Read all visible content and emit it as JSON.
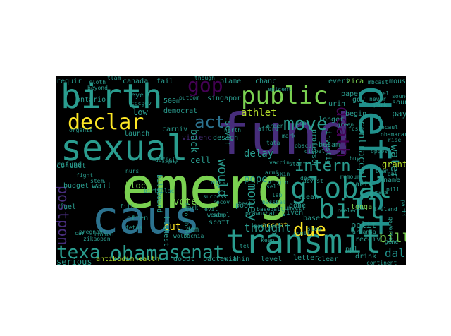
{
  "wordcloud": {
    "background": "#000000",
    "palette": {
      "yellow": "#fde725",
      "lgreen": "#7ad151",
      "green": "#22a884",
      "teal": "#2a9d8f",
      "tealb": "#21918c",
      "blue": "#2c728e",
      "dblue": "#3b528b",
      "purple": "#472d7b",
      "dpurple": "#440154",
      "lime": "#b5de2b",
      "grey": "#555f6d"
    },
    "words": [
      {
        "text": "emerg",
        "color": "lgreen"
      },
      {
        "text": "fund",
        "color": "purple"
      },
      {
        "text": "caus",
        "color": "blue"
      },
      {
        "text": "defect",
        "color": "tealb"
      },
      {
        "text": "birth",
        "color": "teal"
      },
      {
        "text": "sexual",
        "color": "teal"
      },
      {
        "text": "public",
        "color": "lgreen"
      },
      {
        "text": "transmit",
        "color": "teal"
      },
      {
        "text": "global",
        "color": "teal"
      },
      {
        "text": "declar",
        "color": "yellow"
      },
      {
        "text": "bill",
        "color": "teal"
      },
      {
        "text": "obama",
        "color": "teal"
      },
      {
        "text": "texa",
        "color": "teal"
      },
      {
        "text": "senat",
        "color": "teal"
      },
      {
        "text": "due",
        "color": "yellow"
      },
      {
        "text": "move",
        "color": "teal"
      },
      {
        "text": "intern",
        "color": "teal"
      },
      {
        "text": "gop",
        "color": "dpurple"
      },
      {
        "text": "act",
        "color": "blue"
      },
      {
        "text": "death",
        "color": "dpurple"
      },
      {
        "text": "money",
        "color": "teal"
      },
      {
        "text": "postpon",
        "color": "purple"
      },
      {
        "text": "billion",
        "color": "lgreen"
      },
      {
        "text": "dalla",
        "color": "tealb"
      },
      {
        "text": "contracept",
        "color": "teal"
      },
      {
        "text": "water",
        "color": "teal"
      },
      {
        "text": "athlet",
        "color": "lime"
      },
      {
        "text": "thought",
        "color": "teal"
      },
      {
        "text": "polit",
        "color": "teal"
      },
      {
        "text": "pope",
        "color": "teal"
      },
      {
        "text": "delay",
        "color": "teal"
      },
      {
        "text": "design",
        "color": "teal"
      },
      {
        "text": "would",
        "color": "teal"
      },
      {
        "text": "vote",
        "color": "lgreen"
      },
      {
        "text": "block",
        "color": "lgreen"
      },
      {
        "text": "cut",
        "color": "yellow"
      },
      {
        "text": "serious",
        "color": "teal"
      },
      {
        "text": "launch",
        "color": "teal"
      },
      {
        "text": "eye",
        "color": "teal"
      },
      {
        "text": "canada",
        "color": "teal"
      },
      {
        "text": "requir",
        "color": "teal"
      },
      {
        "text": "fail",
        "color": "teal"
      },
      {
        "text": "blame",
        "color": "teal"
      },
      {
        "text": "everi",
        "color": "teal"
      },
      {
        "text": "zica",
        "color": "lgreen"
      },
      {
        "text": "mouse",
        "color": "teal"
      },
      {
        "text": "paper",
        "color": "teal"
      },
      {
        "text": "begin",
        "color": "teal"
      },
      {
        "text": "grant",
        "color": "lime"
      },
      {
        "text": "pay",
        "color": "teal"
      },
      {
        "text": "sound",
        "color": "teal"
      },
      {
        "text": "low",
        "color": "teal"
      },
      {
        "text": "democrat",
        "color": "teal"
      },
      {
        "text": "singapor",
        "color": "teal"
      },
      {
        "text": "500m",
        "color": "teal"
      },
      {
        "text": "ontario",
        "color": "teal"
      },
      {
        "text": "carniv",
        "color": "teal"
      },
      {
        "text": "violenc",
        "color": "purple"
      },
      {
        "text": "cell",
        "color": "teal"
      },
      {
        "text": "back",
        "color": "teal"
      },
      {
        "text": "sever",
        "color": "teal"
      },
      {
        "text": "contact",
        "color": "teal"
      },
      {
        "text": "budget",
        "color": "teal"
      },
      {
        "text": "wait",
        "color": "teal"
      },
      {
        "text": "accept",
        "color": "yellow"
      },
      {
        "text": "given",
        "color": "teal"
      },
      {
        "text": "done",
        "color": "teal"
      },
      {
        "text": "clean",
        "color": "teal"
      },
      {
        "text": "base",
        "color": "teal"
      },
      {
        "text": "receiv",
        "color": "teal"
      },
      {
        "text": "ppl",
        "color": "teal"
      },
      {
        "text": "drink",
        "color": "teal"
      },
      {
        "text": "letter",
        "color": "teal"
      },
      {
        "text": "level",
        "color": "teal"
      },
      {
        "text": "within",
        "color": "teal"
      },
      {
        "text": "bacteria",
        "color": "teal"
      },
      {
        "text": "doubt",
        "color": "teal"
      },
      {
        "text": "antibodimhealth",
        "color": "lime"
      },
      {
        "text": "highest",
        "color": "teal"
      },
      {
        "text": "dem",
        "color": "teal"
      },
      {
        "text": "poor",
        "color": "teal"
      },
      {
        "text": "pesticid",
        "color": "teal"
      },
      {
        "text": "billboard",
        "color": "teal"
      },
      {
        "text": "birthplac",
        "color": "teal"
      },
      {
        "text": "arkansa",
        "color": "teal"
      },
      {
        "text": "ireland",
        "color": "teal"
      },
      {
        "text": "governor",
        "color": "teal"
      },
      {
        "text": "tonga",
        "color": "lgreen"
      },
      {
        "text": "pacif",
        "color": "teal"
      },
      {
        "text": "name",
        "color": "teal"
      },
      {
        "text": "clear",
        "color": "teal"
      },
      {
        "text": "investig",
        "color": "teal"
      },
      {
        "text": "professor",
        "color": "teal"
      },
      {
        "text": "longer",
        "color": "teal"
      },
      {
        "text": "becam",
        "color": "teal"
      },
      {
        "text": "staff",
        "color": "teal"
      },
      {
        "text": "urin",
        "color": "teal"
      },
      {
        "text": "gov",
        "color": "teal"
      },
      {
        "text": "abl",
        "color": "teal"
      },
      {
        "text": "chanc",
        "color": "teal"
      },
      {
        "text": "afford",
        "color": "teal"
      },
      {
        "text": "scott",
        "color": "teal"
      },
      {
        "text": "refund",
        "color": "teal"
      },
      {
        "text": "outcom",
        "color": "teal"
      },
      {
        "text": "rumour",
        "color": "teal"
      },
      {
        "text": "armi",
        "color": "teal"
      },
      {
        "text": "though",
        "color": "teal"
      },
      {
        "text": "beyond",
        "color": "teal"
      },
      {
        "text": "cloth",
        "color": "teal"
      },
      {
        "text": "cdcgov",
        "color": "teal"
      },
      {
        "text": "organis",
        "color": "teal"
      },
      {
        "text": "normal",
        "color": "teal"
      },
      {
        "text": "car",
        "color": "teal"
      },
      {
        "text": "zikaopen",
        "color": "teal"
      },
      {
        "text": "definit",
        "color": "teal"
      },
      {
        "text": "went",
        "color": "teal"
      },
      {
        "text": "wolbachia",
        "color": "teal"
      },
      {
        "text": "slow",
        "color": "teal"
      },
      {
        "text": "decad",
        "color": "teal"
      },
      {
        "text": "dispel",
        "color": "teal"
      },
      {
        "text": "order",
        "color": "teal"
      },
      {
        "text": "green",
        "color": "teal"
      },
      {
        "text": "comit",
        "color": "teal"
      },
      {
        "text": "continent",
        "color": "teal"
      },
      {
        "text": "unveil",
        "color": "teal"
      },
      {
        "text": "parti",
        "color": "teal"
      },
      {
        "text": "highly",
        "color": "teal"
      },
      {
        "text": "throughout",
        "color": "teal"
      },
      {
        "text": "obscur",
        "color": "teal"
      },
      {
        "text": "epicent",
        "color": "teal"
      },
      {
        "text": "devast",
        "color": "teal"
      },
      {
        "text": "reelect",
        "color": "teal"
      },
      {
        "text": "sampl",
        "color": "teal"
      },
      {
        "text": "vaccin",
        "color": "teal"
      },
      {
        "text": "fight",
        "color": "teal"
      },
      {
        "text": "scam",
        "color": "teal"
      },
      {
        "text": "recov",
        "color": "teal"
      },
      {
        "text": "tata",
        "color": "teal"
      },
      {
        "text": "sound",
        "color": "teal"
      },
      {
        "text": "skin",
        "color": "teal"
      },
      {
        "text": "park",
        "color": "teal"
      },
      {
        "text": "mbcast",
        "color": "teal"
      },
      {
        "text": "oppos",
        "color": "teal"
      },
      {
        "text": "never",
        "color": "teal"
      },
      {
        "text": "mass",
        "color": "teal"
      },
      {
        "text": "north",
        "color": "teal"
      },
      {
        "text": "virgin",
        "color": "teal"
      },
      {
        "text": "gel",
        "color": "teal"
      },
      {
        "text": "fetus",
        "color": "teal"
      },
      {
        "text": "often",
        "color": "teal"
      },
      {
        "text": "stem",
        "color": "teal"
      },
      {
        "text": "teen",
        "color": "teal"
      },
      {
        "text": "rise",
        "color": "teal"
      },
      {
        "text": "dark",
        "color": "teal"
      },
      {
        "text": "sell",
        "color": "teal"
      },
      {
        "text": "lab",
        "color": "teal"
      },
      {
        "text": "pill",
        "color": "teal"
      },
      {
        "text": "fiji",
        "color": "teal"
      },
      {
        "text": "nurs",
        "color": "teal"
      },
      {
        "text": "gene",
        "color": "teal"
      },
      {
        "text": "mark",
        "color": "teal"
      },
      {
        "text": "tell",
        "color": "teal"
      },
      {
        "text": "pregnant",
        "color": "teal"
      },
      {
        "text": "evil",
        "color": "teal"
      },
      {
        "text": "keep",
        "color": "teal"
      },
      {
        "text": "test",
        "color": "teal"
      },
      {
        "text": "fuel",
        "color": "teal"
      },
      {
        "text": "mecaul",
        "color": "teal"
      },
      {
        "text": "success",
        "color": "teal"
      },
      {
        "text": "aid",
        "color": "teal"
      },
      {
        "text": "prawnchat",
        "color": "teal"
      },
      {
        "text": "obamacar",
        "color": "teal"
      },
      {
        "text": "buy",
        "color": "teal"
      },
      {
        "text": "mit",
        "color": "teal"
      },
      {
        "text": "tlam",
        "color": "teal"
      },
      {
        "text": "fcsi",
        "color": "teal"
      },
      {
        "text": "bassbal",
        "color": "teal"
      },
      {
        "text": "baseball",
        "color": "teal"
      }
    ]
  }
}
